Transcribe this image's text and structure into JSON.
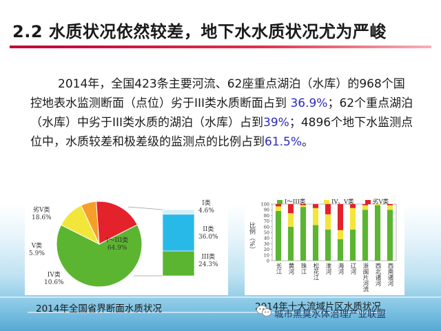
{
  "slide": {
    "title": "2.2 水质状况依然较差，地下水水质状况尤为严峻",
    "paragraph": {
      "segments": [
        {
          "text": "2014年，全国423条主要河流、62座重点湖泊（水库）的968个国控地表水监测断面（点位）劣于III类水质断面占到 ",
          "hl": false
        },
        {
          "text": "36.9%",
          "hl": true
        },
        {
          "text": "；62个重点湖泊（水库）中劣于III类水质的湖泊（水库）占到",
          "hl": false
        },
        {
          "text": "39%",
          "hl": true
        },
        {
          "text": "；4896个地下水监测点位中，水质较差和极差级的监测点的比例占到",
          "hl": false
        },
        {
          "text": "61.5%",
          "hl": true
        },
        {
          "text": "。",
          "hl": false
        }
      ]
    },
    "captions": {
      "left": "2014年全国省界断面水质状况",
      "right": "2014年十大流域片区水质状况"
    },
    "watermark": "城市黑臭水体治理产业联盟",
    "colors": {
      "green": "#5bb530",
      "yellow": "#f3e63a",
      "red": "#e3222b",
      "cyan": "#29b9e8",
      "title_accent": "#c0003a"
    }
  },
  "chart_data": [
    {
      "type": "pie",
      "categories": [
        "I类",
        "II类",
        "III类",
        "I～III类",
        "IV类",
        "V类",
        "劣V类"
      ],
      "slices": [
        {
          "label": "I～III类",
          "value": 64.9,
          "value_text": "64.9%",
          "color": "#5bb530"
        },
        {
          "label": "IV类",
          "value": 10.6,
          "value_text": "10.6%",
          "color": "#f3e63a"
        },
        {
          "label": "V类",
          "value": 5.9,
          "value_text": "5.9%",
          "color": "#f59e2a"
        },
        {
          "label": "劣V类",
          "value": 18.6,
          "value_text": "18.6%",
          "color": "#e3222b"
        }
      ],
      "breakdown": [
        {
          "label": "I类",
          "value": 4.6,
          "value_text": "4.6%",
          "color": "#d8eef7"
        },
        {
          "label": "II类",
          "value": 36.0,
          "value_text": "36.0%",
          "color": "#29b9e8"
        },
        {
          "label": "III类",
          "value": 24.3,
          "value_text": "24.3%",
          "color": "#5bb530"
        }
      ]
    },
    {
      "type": "bar",
      "stacked": true,
      "ylabel": "比例（%）",
      "ylim": [
        0,
        100
      ],
      "yticks": [
        "0",
        "10",
        "20",
        "30",
        "40",
        "50",
        "60",
        "70",
        "80",
        "90",
        "100"
      ],
      "categories": [
        "长江",
        "黄河",
        "珠江",
        "松花江",
        "淮河",
        "海河",
        "辽河",
        "浙闽片河流",
        "西北诸河",
        "西南诸河"
      ],
      "series": [
        {
          "name": "I～III类",
          "color": "#5bb530",
          "values": [
            88,
            60,
            95,
            63,
            55,
            38,
            55,
            90,
            98,
            90
          ]
        },
        {
          "name": "IV、V类",
          "color": "#f3e63a",
          "values": [
            8,
            24,
            3,
            30,
            27,
            16,
            38,
            8,
            2,
            8
          ]
        },
        {
          "name": "劣V类",
          "color": "#e3222b",
          "values": [
            4,
            16,
            2,
            7,
            18,
            46,
            7,
            2,
            0,
            2
          ]
        }
      ]
    }
  ]
}
